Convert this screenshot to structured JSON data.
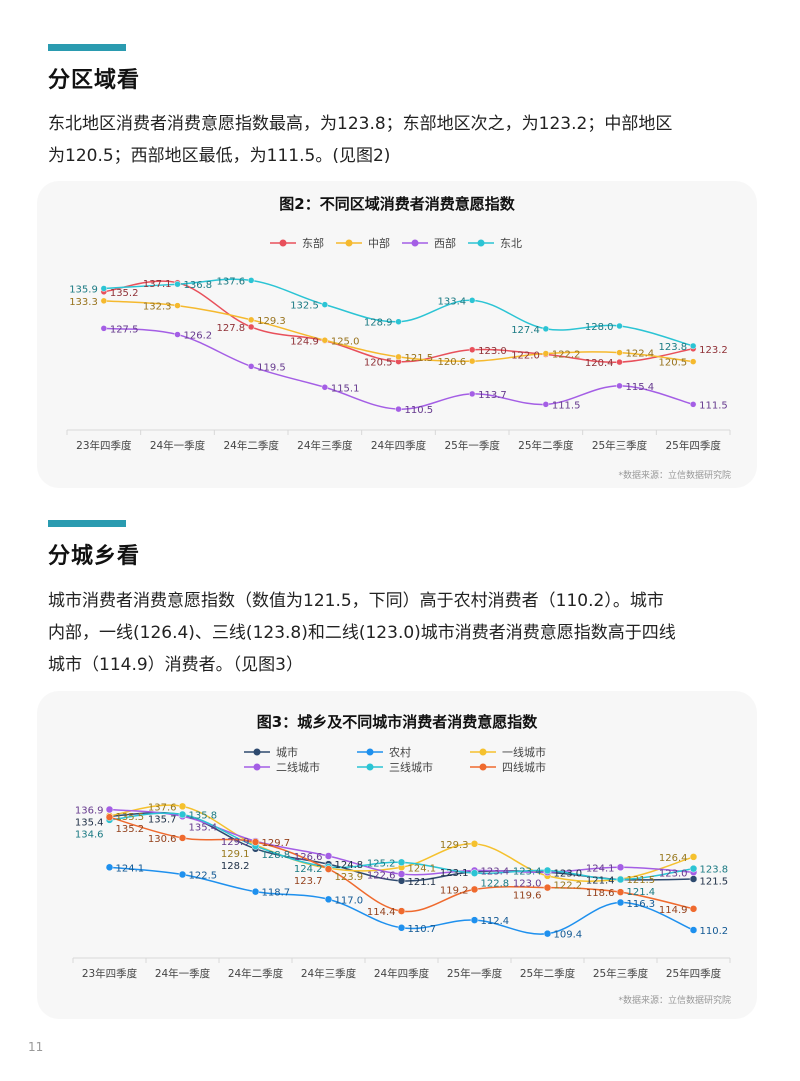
{
  "section1": {
    "title": "分区域看",
    "paragraph_line1": "东北地区消费者消费意愿指数最高，为123.8；东部地区次之，为123.2；中部地区",
    "paragraph_line2": "为120.5；西部地区最低，为111.5。(见图2)"
  },
  "section2": {
    "title": "分城乡看",
    "paragraph_line1": "城市消费者消费意愿指数（数值为121.5，下同）高于农村消费者（110.2）。城市",
    "paragraph_line2": "内部，一线(126.4)、三线(123.8)和二线(123.0)城市消费者消费意愿指数高于四线",
    "paragraph_line3": "城市（114.9）消费者。（见图3）"
  },
  "page_number": "11",
  "chart_data": [
    {
      "type": "line",
      "title": "图2：不同区域消费者消费意愿指数",
      "source": "*数据来源：立信数据研究院",
      "xlabel": "",
      "ylabel": "",
      "legend_position": "top",
      "grid": false,
      "ylim": [
        108,
        140
      ],
      "categories": [
        "23年四季度",
        "24年一季度",
        "24年二季度",
        "24年三季度",
        "24年四季度",
        "25年一季度",
        "25年二季度",
        "25年三季度",
        "25年四季度"
      ],
      "series": [
        {
          "name": "东部",
          "color": "#e8505b",
          "values": [
            135.2,
            137.1,
            127.8,
            124.9,
            120.5,
            123.0,
            122.0,
            120.4,
            123.2
          ]
        },
        {
          "name": "中部",
          "color": "#f5b92e",
          "values": [
            133.3,
            132.3,
            129.3,
            125.0,
            121.5,
            120.6,
            122.2,
            122.4,
            120.5
          ]
        },
        {
          "name": "西部",
          "color": "#a45ee5",
          "values": [
            127.5,
            126.2,
            119.5,
            115.1,
            110.5,
            113.7,
            111.5,
            115.4,
            111.5
          ]
        },
        {
          "name": "东北",
          "color": "#2bc4d4",
          "values": [
            135.9,
            136.8,
            137.6,
            132.5,
            128.9,
            133.4,
            127.4,
            128.0,
            123.8
          ]
        }
      ]
    },
    {
      "type": "line",
      "title": "图3：城乡及不同城市消费者消费意愿指数",
      "source": "*数据来源：立信数据研究院",
      "xlabel": "",
      "ylabel": "",
      "legend_position": "top",
      "grid": false,
      "ylim": [
        106,
        141
      ],
      "categories": [
        "23年四季度",
        "24年一季度",
        "24年二季度",
        "24年三季度",
        "24年四季度",
        "25年一季度",
        "25年二季度",
        "25年三季度",
        "25年四季度"
      ],
      "series": [
        {
          "name": "城市",
          "color": "#2e4a6f",
          "values": [
            135.4,
            135.7,
            128.2,
            124.8,
            121.1,
            123.1,
            123.0,
            121.4,
            121.5
          ]
        },
        {
          "name": "农村",
          "color": "#1e90ee",
          "values": [
            124.1,
            122.5,
            118.7,
            117.0,
            110.7,
            112.4,
            109.4,
            116.3,
            110.2
          ]
        },
        {
          "name": "一线城市",
          "color": "#f5c12e",
          "values": [
            135.5,
            137.6,
            129.1,
            123.9,
            124.1,
            129.3,
            122.2,
            121.5,
            126.4
          ]
        },
        {
          "name": "二线城市",
          "color": "#a45ee5",
          "values": [
            136.9,
            135.4,
            129.9,
            126.6,
            122.6,
            123.4,
            123.0,
            124.1,
            123.0
          ]
        },
        {
          "name": "三线城市",
          "color": "#2bc4d4",
          "values": [
            134.6,
            135.8,
            128.8,
            124.2,
            125.2,
            122.8,
            123.4,
            121.4,
            123.8
          ]
        },
        {
          "name": "四线城市",
          "color": "#ef6a2e",
          "values": [
            135.2,
            130.6,
            129.7,
            123.7,
            114.4,
            119.2,
            119.6,
            118.6,
            114.9
          ]
        }
      ]
    }
  ]
}
